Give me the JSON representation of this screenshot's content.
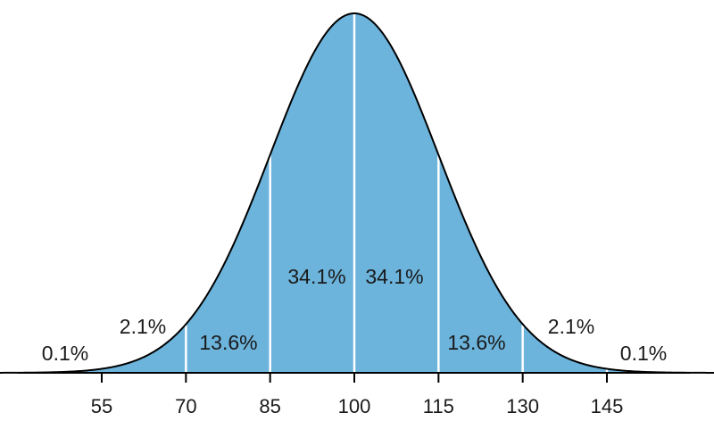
{
  "chart_data": {
    "type": "area",
    "title": "",
    "xlabel": "",
    "ylabel": "",
    "distribution": {
      "mean": 100,
      "sd": 15
    },
    "xlim": [
      20,
      175
    ],
    "x_ticks": [
      {
        "value": 55,
        "label": "55"
      },
      {
        "value": 70,
        "label": "70"
      },
      {
        "value": 85,
        "label": "85"
      },
      {
        "value": 100,
        "label": "100"
      },
      {
        "value": 115,
        "label": "115"
      },
      {
        "value": 130,
        "label": "130"
      },
      {
        "value": 145,
        "label": "145"
      }
    ],
    "divider_lines": [
      70,
      85,
      100,
      115,
      130,
      145
    ],
    "regions": [
      {
        "label": "0.1%",
        "from": null,
        "to": 55
      },
      {
        "label": "2.1%",
        "from": 55,
        "to": 70
      },
      {
        "label": "13.6%",
        "from": 70,
        "to": 85
      },
      {
        "label": "34.1%",
        "from": 85,
        "to": 100
      },
      {
        "label": "34.1%",
        "from": 100,
        "to": 115
      },
      {
        "label": "13.6%",
        "from": 115,
        "to": 130
      },
      {
        "label": "2.1%",
        "from": 130,
        "to": 145
      },
      {
        "label": "0.1%",
        "from": 145,
        "to": null
      }
    ],
    "colors": {
      "fill": "#6cb4dc",
      "outline": "#000000",
      "dividers": "#ffffff",
      "axis": "#000000"
    },
    "grid": false,
    "legend": "none"
  }
}
